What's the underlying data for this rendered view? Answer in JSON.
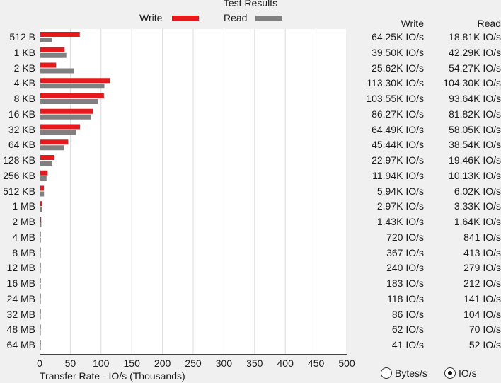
{
  "window": {
    "title": "Test Results"
  },
  "colors": {
    "write": "#e41a1c",
    "read": "#808080",
    "grid": "#dcdcdc"
  },
  "legend": {
    "write_label": "Write",
    "read_label": "Read"
  },
  "table": {
    "write_header": "Write",
    "read_header": "Read",
    "rows": [
      {
        "size": "512 B",
        "write": "64.25K IO/s",
        "read": "18.81K IO/s"
      },
      {
        "size": "1 KB",
        "write": "39.50K IO/s",
        "read": "42.29K IO/s"
      },
      {
        "size": "2 KB",
        "write": "25.62K IO/s",
        "read": "54.27K IO/s"
      },
      {
        "size": "4 KB",
        "write": "113.30K IO/s",
        "read": "104.30K IO/s"
      },
      {
        "size": "8 KB",
        "write": "103.55K IO/s",
        "read": "93.64K IO/s"
      },
      {
        "size": "16 KB",
        "write": "86.27K IO/s",
        "read": "81.82K IO/s"
      },
      {
        "size": "32 KB",
        "write": "64.49K IO/s",
        "read": "58.05K IO/s"
      },
      {
        "size": "64 KB",
        "write": "45.44K IO/s",
        "read": "38.54K IO/s"
      },
      {
        "size": "128 KB",
        "write": "22.97K IO/s",
        "read": "19.46K IO/s"
      },
      {
        "size": "256 KB",
        "write": "11.94K IO/s",
        "read": "10.13K IO/s"
      },
      {
        "size": "512 KB",
        "write": "5.94K IO/s",
        "read": "6.02K IO/s"
      },
      {
        "size": "1 MB",
        "write": "2.97K IO/s",
        "read": "3.33K IO/s"
      },
      {
        "size": "2 MB",
        "write": "1.43K IO/s",
        "read": "1.64K IO/s"
      },
      {
        "size": "4 MB",
        "write": "720 IO/s",
        "read": "841 IO/s"
      },
      {
        "size": "8 MB",
        "write": "367 IO/s",
        "read": "413 IO/s"
      },
      {
        "size": "12 MB",
        "write": "240 IO/s",
        "read": "279 IO/s"
      },
      {
        "size": "16 MB",
        "write": "183 IO/s",
        "read": "212 IO/s"
      },
      {
        "size": "24 MB",
        "write": "118 IO/s",
        "read": "141 IO/s"
      },
      {
        "size": "32 MB",
        "write": "86 IO/s",
        "read": "104 IO/s"
      },
      {
        "size": "48 MB",
        "write": "62 IO/s",
        "read": "70 IO/s"
      },
      {
        "size": "64 MB",
        "write": "41 IO/s",
        "read": "52 IO/s"
      }
    ]
  },
  "chart_data": {
    "type": "bar",
    "orientation": "horizontal",
    "title": "Test Results",
    "xlabel": "Transfer Rate - IO/s (Thousands)",
    "ylabel": "",
    "xlim": [
      0,
      500
    ],
    "xticks": [
      "0",
      "50",
      "100",
      "150",
      "200",
      "250",
      "300",
      "350",
      "400",
      "450",
      "500"
    ],
    "grid": true,
    "legend_position": "top",
    "categories": [
      "512 B",
      "1 KB",
      "2 KB",
      "4 KB",
      "8 KB",
      "16 KB",
      "32 KB",
      "64 KB",
      "128 KB",
      "256 KB",
      "512 KB",
      "1 MB",
      "2 MB",
      "4 MB",
      "8 MB",
      "12 MB",
      "16 MB",
      "24 MB",
      "32 MB",
      "48 MB",
      "64 MB"
    ],
    "series": [
      {
        "name": "Write",
        "values": [
          64.25,
          39.5,
          25.62,
          113.3,
          103.55,
          86.27,
          64.49,
          45.44,
          22.97,
          11.94,
          5.94,
          2.97,
          1.43,
          0.72,
          0.367,
          0.24,
          0.183,
          0.118,
          0.086,
          0.062,
          0.041
        ]
      },
      {
        "name": "Read",
        "values": [
          18.81,
          42.29,
          54.27,
          104.3,
          93.64,
          81.82,
          58.05,
          38.54,
          19.46,
          10.13,
          6.02,
          3.33,
          1.64,
          0.841,
          0.413,
          0.279,
          0.212,
          0.141,
          0.104,
          0.07,
          0.052
        ]
      }
    ]
  },
  "units": {
    "options": [
      "Bytes/s",
      "IO/s"
    ],
    "selected": "IO/s"
  }
}
